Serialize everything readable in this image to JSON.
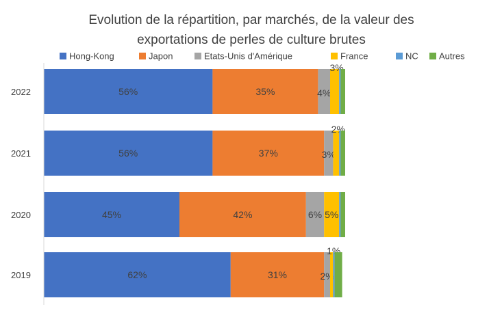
{
  "chart_data": {
    "type": "bar",
    "orientation": "horizontal",
    "stacked": true,
    "title_lines": [
      "Evolution de la répartition, par marchés, de la valeur des",
      "exportations de perles de culture brutes"
    ],
    "xlabel": "",
    "ylabel": "",
    "categories": [
      "2022",
      "2021",
      "2020",
      "2019"
    ],
    "xlim": [
      0,
      100
    ],
    "legend_position": "top",
    "grid": false,
    "series": [
      {
        "name": "Hong-Kong",
        "color": "#4472C4",
        "values": [
          56,
          56,
          45,
          62
        ],
        "labels": [
          "56%",
          "56%",
          "45%",
          "62%"
        ]
      },
      {
        "name": "Japon",
        "color": "#ED7D31",
        "values": [
          35,
          37,
          42,
          31
        ],
        "labels": [
          "35%",
          "37%",
          "42%",
          "31%"
        ]
      },
      {
        "name": "Etats-Unis d'Amérique",
        "color": "#A5A5A5",
        "values": [
          4,
          3,
          6,
          2
        ],
        "labels": [
          "4%",
          "3%",
          "6%",
          "2%"
        ]
      },
      {
        "name": "France",
        "color": "#FFC000",
        "values": [
          3,
          2,
          5,
          1
        ],
        "labels": [
          "3%",
          "2%",
          "5%",
          "1%"
        ]
      },
      {
        "name": "NC",
        "color": "#5B9BD5",
        "values": [
          0.5,
          0.5,
          0.5,
          0.5
        ],
        "labels": [
          "",
          "",
          "",
          ""
        ]
      },
      {
        "name": "Autres",
        "color": "#70AD47",
        "values": [
          1.5,
          1.5,
          1.5,
          2.5
        ],
        "labels": [
          "",
          "",
          "",
          ""
        ]
      }
    ]
  }
}
